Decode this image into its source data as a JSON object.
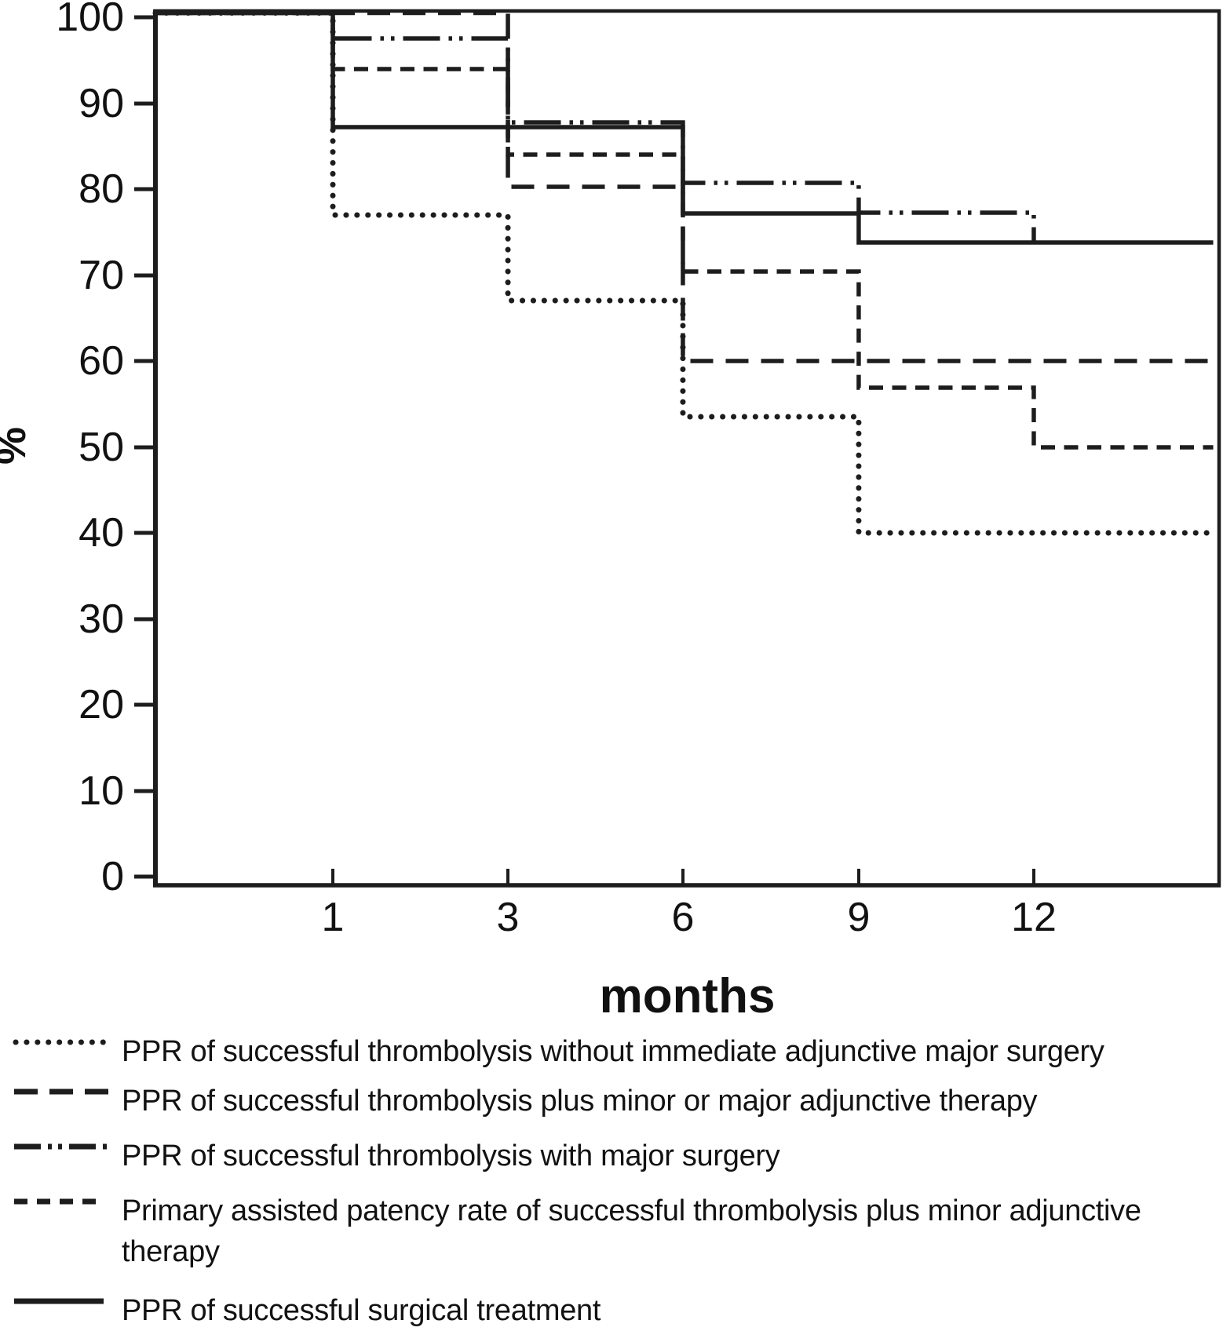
{
  "figure": {
    "background_color": "#ffffff",
    "line_color": "#1d1d1d",
    "text_color": "#111111"
  },
  "chart_data": {
    "type": "line",
    "subtype": "kaplan-meier-step",
    "title": "",
    "xlabel": "months",
    "ylabel": "%",
    "x_ticks": [
      1,
      3,
      6,
      9,
      12
    ],
    "y_ticks": [
      0,
      10,
      20,
      30,
      40,
      50,
      60,
      70,
      80,
      90,
      100
    ],
    "ylim": [
      0,
      100
    ],
    "x_axis_layout": "category ticks equally spaced; curves extend past month 12 to plot edge",
    "grid": "off",
    "frame": "full box frame around plot",
    "legend_position": "below chart",
    "series": [
      {
        "name": "PPR of successful thrombolysis without immediate adjunctive major surgery",
        "style": "dotted",
        "steps_note": "value held until listed month; 'end' = right edge of plot",
        "steps": [
          [
            "1",
            100
          ],
          [
            "3",
            77
          ],
          [
            "6",
            67
          ],
          [
            "9",
            53.5
          ],
          [
            "end",
            40
          ]
        ]
      },
      {
        "name": "PPR of successful thrombolysis plus minor or major adjunctive therapy",
        "style": "long-dash",
        "steps": [
          [
            "3",
            100
          ],
          [
            "6",
            80.3
          ],
          [
            "end",
            60
          ]
        ]
      },
      {
        "name": "PPR of successful thrombolysis with major surgery",
        "style": "dash-dot-dot",
        "steps": [
          [
            "1",
            100
          ],
          [
            "3",
            97.5
          ],
          [
            "6",
            87.8
          ],
          [
            "9",
            80.7
          ],
          [
            "12",
            77.3
          ]
        ],
        "final_drop": 73.9
      },
      {
        "name": "Primary assisted patency rate of successful thrombolysis plus minor adjunctive therapy",
        "style": "short-dash",
        "steps": [
          [
            "1",
            100
          ],
          [
            "3",
            94
          ],
          [
            "6",
            84
          ],
          [
            "9",
            70.4
          ],
          [
            "12",
            56.9
          ],
          [
            "end",
            50
          ]
        ]
      },
      {
        "name": "PPR of successful surgical treatment",
        "style": "solid",
        "steps": [
          [
            "1",
            100
          ],
          [
            "6",
            87.2
          ],
          [
            "9",
            77.2
          ],
          [
            "end",
            73.8
          ]
        ]
      }
    ]
  }
}
